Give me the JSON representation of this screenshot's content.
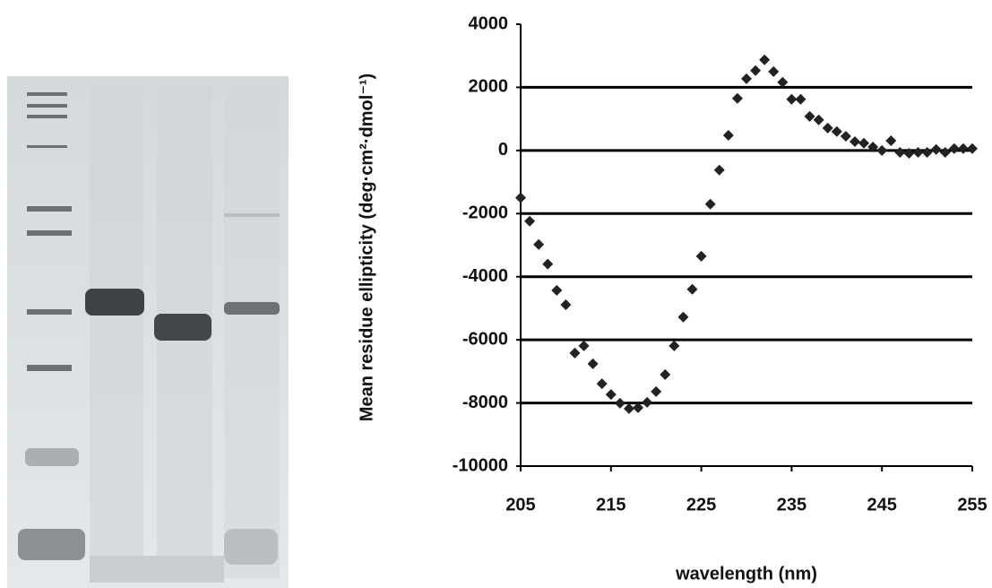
{
  "chart_data": {
    "type": "scatter",
    "x_label": "wavelength (nm)",
    "y_label": "Mean residue ellipticity (deg·cm²·dmol⁻¹)",
    "x": [
      205,
      206,
      207,
      208,
      209,
      210,
      211,
      212,
      213,
      214,
      215,
      216,
      217,
      218,
      219,
      220,
      221,
      222,
      223,
      224,
      225,
      226,
      227,
      228,
      229,
      230,
      231,
      232,
      233,
      234,
      235,
      236,
      237,
      238,
      239,
      240,
      241,
      242,
      243,
      244,
      245,
      246,
      247,
      248,
      249,
      250,
      251,
      252,
      253,
      254,
      255
    ],
    "series": [
      {
        "color": "#222222",
        "values": [
          -1500,
          -2240,
          -2980,
          -3600,
          -4430,
          -4890,
          -6420,
          -6190,
          -6760,
          -7390,
          -7730,
          -8010,
          -8180,
          -8150,
          -7980,
          -7640,
          -7100,
          -6190,
          -5280,
          -4400,
          -3350,
          -1700,
          -620,
          480,
          1650,
          2270,
          2530,
          2870,
          2500,
          2160,
          1620,
          1620,
          1080,
          970,
          710,
          600,
          450,
          280,
          230,
          110,
          0,
          310,
          -60,
          -90,
          -60,
          -60,
          30,
          -60,
          60,
          60,
          60
        ]
      }
    ],
    "xlim": [
      205,
      255
    ],
    "xticks": [
      205,
      215,
      225,
      235,
      245,
      255
    ],
    "ylim": [
      -10000,
      4000
    ],
    "yticks": [
      -10000,
      -8000,
      -6000,
      -4000,
      -2000,
      0,
      2000,
      4000
    ],
    "grid": true
  }
}
